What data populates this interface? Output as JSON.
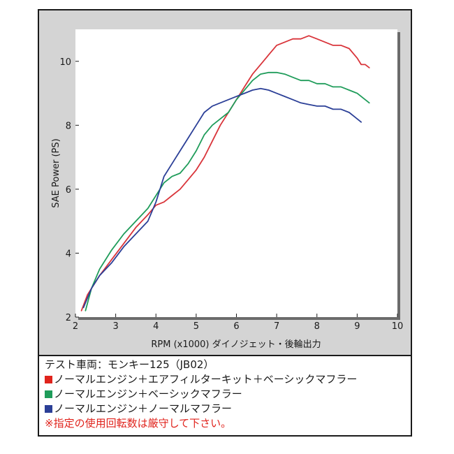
{
  "chart_data": {
    "type": "line",
    "xlabel": "RPM (x1000) ダイノジェット・後輪出力",
    "ylabel": "SAE Power (PS)",
    "xlim": [
      2,
      10
    ],
    "ylim": [
      2,
      11
    ],
    "xticks": [
      2,
      3,
      4,
      5,
      6,
      7,
      8,
      9,
      10
    ],
    "yticks": [
      2,
      4,
      6,
      8,
      10
    ],
    "grid": false,
    "legend_position": "below",
    "series": [
      {
        "name": "ノーマルエンジン＋エアフィルターキット＋ベーシックマフラー",
        "color": "#d9343a",
        "points": [
          [
            2.15,
            2.2
          ],
          [
            2.3,
            2.7
          ],
          [
            2.6,
            3.3
          ],
          [
            2.9,
            3.8
          ],
          [
            3.2,
            4.3
          ],
          [
            3.5,
            4.8
          ],
          [
            3.8,
            5.2
          ],
          [
            4.0,
            5.5
          ],
          [
            4.2,
            5.6
          ],
          [
            4.4,
            5.8
          ],
          [
            4.6,
            6.0
          ],
          [
            4.8,
            6.3
          ],
          [
            5.0,
            6.6
          ],
          [
            5.2,
            7.0
          ],
          [
            5.4,
            7.5
          ],
          [
            5.6,
            8.0
          ],
          [
            5.8,
            8.4
          ],
          [
            6.0,
            8.8
          ],
          [
            6.2,
            9.2
          ],
          [
            6.4,
            9.6
          ],
          [
            6.6,
            9.9
          ],
          [
            6.8,
            10.2
          ],
          [
            7.0,
            10.5
          ],
          [
            7.2,
            10.6
          ],
          [
            7.4,
            10.7
          ],
          [
            7.6,
            10.7
          ],
          [
            7.8,
            10.8
          ],
          [
            8.0,
            10.7
          ],
          [
            8.2,
            10.6
          ],
          [
            8.4,
            10.5
          ],
          [
            8.6,
            10.5
          ],
          [
            8.8,
            10.4
          ],
          [
            9.0,
            10.1
          ],
          [
            9.1,
            9.9
          ],
          [
            9.2,
            9.9
          ],
          [
            9.3,
            9.8
          ]
        ]
      },
      {
        "name": "ノーマルエンジン＋ベーシックマフラー",
        "color": "#1f9c5a",
        "points": [
          [
            2.25,
            2.2
          ],
          [
            2.4,
            2.9
          ],
          [
            2.6,
            3.5
          ],
          [
            2.9,
            4.1
          ],
          [
            3.2,
            4.6
          ],
          [
            3.5,
            5.0
          ],
          [
            3.8,
            5.4
          ],
          [
            4.0,
            5.8
          ],
          [
            4.2,
            6.2
          ],
          [
            4.4,
            6.4
          ],
          [
            4.6,
            6.5
          ],
          [
            4.8,
            6.8
          ],
          [
            5.0,
            7.2
          ],
          [
            5.2,
            7.7
          ],
          [
            5.4,
            8.0
          ],
          [
            5.6,
            8.2
          ],
          [
            5.8,
            8.4
          ],
          [
            6.0,
            8.8
          ],
          [
            6.2,
            9.1
          ],
          [
            6.4,
            9.4
          ],
          [
            6.6,
            9.6
          ],
          [
            6.8,
            9.65
          ],
          [
            7.0,
            9.65
          ],
          [
            7.2,
            9.6
          ],
          [
            7.4,
            9.5
          ],
          [
            7.6,
            9.4
          ],
          [
            7.8,
            9.4
          ],
          [
            8.0,
            9.3
          ],
          [
            8.2,
            9.3
          ],
          [
            8.4,
            9.2
          ],
          [
            8.6,
            9.2
          ],
          [
            8.8,
            9.1
          ],
          [
            9.0,
            9.0
          ],
          [
            9.2,
            8.8
          ],
          [
            9.3,
            8.7
          ]
        ]
      },
      {
        "name": "ノーマルエンジン＋ノーマルマフラー",
        "color": "#2b3f97",
        "points": [
          [
            2.2,
            2.3
          ],
          [
            2.4,
            2.9
          ],
          [
            2.6,
            3.3
          ],
          [
            2.9,
            3.7
          ],
          [
            3.2,
            4.2
          ],
          [
            3.5,
            4.6
          ],
          [
            3.8,
            5.0
          ],
          [
            4.0,
            5.6
          ],
          [
            4.2,
            6.4
          ],
          [
            4.4,
            6.8
          ],
          [
            4.6,
            7.2
          ],
          [
            4.8,
            7.6
          ],
          [
            5.0,
            8.0
          ],
          [
            5.2,
            8.4
          ],
          [
            5.4,
            8.6
          ],
          [
            5.6,
            8.7
          ],
          [
            5.8,
            8.8
          ],
          [
            6.0,
            8.9
          ],
          [
            6.2,
            9.0
          ],
          [
            6.4,
            9.1
          ],
          [
            6.6,
            9.15
          ],
          [
            6.8,
            9.1
          ],
          [
            7.0,
            9.0
          ],
          [
            7.2,
            8.9
          ],
          [
            7.4,
            8.8
          ],
          [
            7.6,
            8.7
          ],
          [
            7.8,
            8.65
          ],
          [
            8.0,
            8.6
          ],
          [
            8.2,
            8.6
          ],
          [
            8.4,
            8.5
          ],
          [
            8.6,
            8.5
          ],
          [
            8.8,
            8.4
          ],
          [
            9.0,
            8.2
          ],
          [
            9.1,
            8.1
          ]
        ]
      }
    ]
  },
  "legend": {
    "vehicle": "テスト車両：モンキー125（JB02）",
    "items": [
      {
        "label": "ノーマルエンジン＋エアフィルターキット＋ベーシックマフラー",
        "color": "#e0231c"
      },
      {
        "label": "ノーマルエンジン＋ベーシックマフラー",
        "color": "#1f9c5a"
      },
      {
        "label": "ノーマルエンジン＋ノーマルマフラー",
        "color": "#2b3f97"
      }
    ],
    "note": "※指定の使用回転数は厳守して下さい。"
  }
}
